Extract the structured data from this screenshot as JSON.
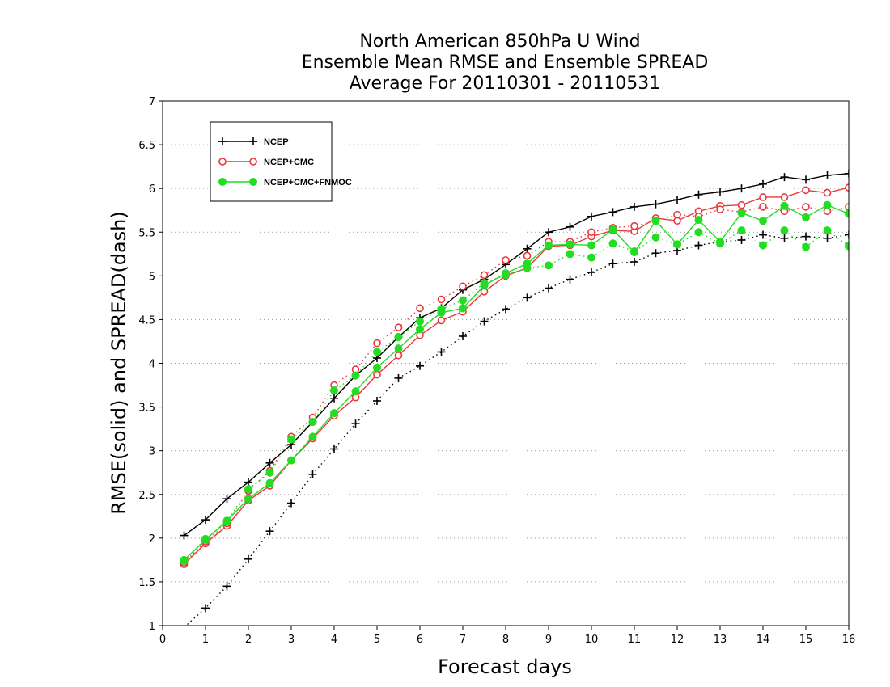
{
  "chart_data": {
    "type": "line",
    "title_lines": [
      "North American 850hPa U Wind",
      "Ensemble Mean RMSE and Ensemble SPREAD",
      "Average For 20110301 - 20110531"
    ],
    "xlabel": "Forecast days",
    "ylabel": "RMSE(solid) and SPREAD(dash)",
    "xlim": [
      0,
      16
    ],
    "ylim": [
      1,
      7
    ],
    "x_ticks": [
      0,
      1,
      2,
      3,
      4,
      5,
      6,
      7,
      8,
      9,
      10,
      11,
      12,
      13,
      14,
      15,
      16
    ],
    "y_ticks": [
      1,
      1.5,
      2,
      2.5,
      3,
      3.5,
      4,
      4.5,
      5,
      5.5,
      6,
      6.5,
      7
    ],
    "grid": "horizontal dotted",
    "legend_position": "top-left",
    "x": [
      0.5,
      1,
      1.5,
      2,
      2.5,
      3,
      3.5,
      4,
      4.5,
      5,
      5.5,
      6,
      6.5,
      7,
      7.5,
      8,
      8.5,
      9,
      9.5,
      10,
      10.5,
      11,
      11.5,
      12,
      12.5,
      13,
      13.5,
      14,
      14.5,
      15,
      15.5,
      16
    ],
    "series": [
      {
        "name": "NCEP",
        "color": "#000000",
        "marker": "plus",
        "rmse": [
          2.03,
          2.21,
          2.45,
          2.64,
          2.86,
          3.07,
          3.33,
          3.6,
          3.86,
          4.06,
          4.3,
          4.52,
          4.63,
          4.84,
          4.96,
          5.13,
          5.31,
          5.5,
          5.56,
          5.68,
          5.73,
          5.79,
          5.82,
          5.87,
          5.93,
          5.96,
          6.0,
          6.05,
          6.13,
          6.1,
          6.15,
          6.17
        ],
        "spread": [
          0.98,
          1.2,
          1.45,
          1.76,
          2.08,
          2.4,
          2.73,
          3.02,
          3.31,
          3.57,
          3.83,
          3.97,
          4.13,
          4.31,
          4.48,
          4.62,
          4.75,
          4.86,
          4.96,
          5.04,
          5.14,
          5.16,
          5.26,
          5.29,
          5.35,
          5.39,
          5.41,
          5.47,
          5.43,
          5.45,
          5.43,
          5.47
        ]
      },
      {
        "name": "NCEP+CMC",
        "color": "#e8383d",
        "marker": "open-circle",
        "rmse": [
          1.7,
          1.94,
          2.14,
          2.43,
          2.6,
          2.89,
          3.14,
          3.4,
          3.61,
          3.87,
          4.09,
          4.32,
          4.49,
          4.59,
          4.82,
          5.0,
          5.09,
          5.34,
          5.35,
          5.45,
          5.52,
          5.51,
          5.66,
          5.63,
          5.74,
          5.8,
          5.81,
          5.9,
          5.9,
          5.98,
          5.95,
          6.01
        ],
        "spread": [
          1.72,
          1.96,
          2.17,
          2.54,
          2.77,
          3.16,
          3.38,
          3.75,
          3.93,
          4.23,
          4.41,
          4.63,
          4.73,
          4.88,
          5.01,
          5.18,
          5.23,
          5.39,
          5.39,
          5.5,
          5.55,
          5.57,
          5.63,
          5.7,
          5.68,
          5.76,
          5.73,
          5.79,
          5.74,
          5.79,
          5.74,
          5.79
        ]
      },
      {
        "name": "NCEP+CMC+FNMOC",
        "color": "#22dd22",
        "marker": "filled-circle",
        "rmse": [
          1.75,
          1.98,
          2.2,
          2.45,
          2.63,
          2.89,
          3.16,
          3.43,
          3.68,
          3.95,
          4.17,
          4.39,
          4.58,
          4.63,
          4.89,
          5.03,
          5.14,
          5.35,
          5.36,
          5.35,
          5.53,
          5.27,
          5.63,
          5.36,
          5.64,
          5.39,
          5.72,
          5.63,
          5.8,
          5.67,
          5.81,
          5.71
        ],
        "spread": [
          1.74,
          1.99,
          2.19,
          2.56,
          2.75,
          3.13,
          3.33,
          3.69,
          3.86,
          4.13,
          4.3,
          4.48,
          4.62,
          4.72,
          4.92,
          5.01,
          5.09,
          5.12,
          5.25,
          5.21,
          5.37,
          5.28,
          5.44,
          5.36,
          5.5,
          5.37,
          5.52,
          5.35,
          5.52,
          5.33,
          5.52,
          5.34
        ]
      }
    ]
  }
}
